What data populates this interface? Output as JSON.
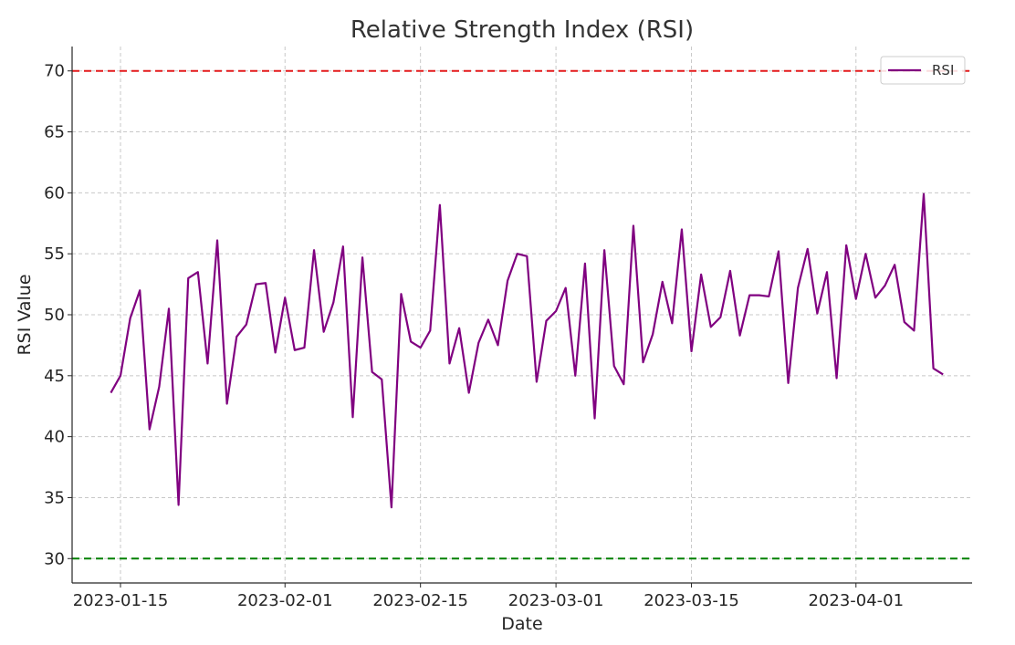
{
  "chart_data": {
    "type": "line",
    "title": "Relative Strength Index (RSI)",
    "xlabel": "Date",
    "ylabel": "RSI Value",
    "ylim": [
      28,
      72
    ],
    "xlim": [
      "2023-01-10",
      "2023-04-13"
    ],
    "x_ticks": [
      "2023-01-15",
      "2023-02-01",
      "2023-02-15",
      "2023-03-01",
      "2023-03-15",
      "2023-04-01"
    ],
    "y_ticks": [
      30,
      35,
      40,
      45,
      50,
      55,
      60,
      65,
      70
    ],
    "grid": true,
    "legend_position": "top-right",
    "thresholds": [
      {
        "value": 70,
        "color": "#e41a1c",
        "style": "dashed"
      },
      {
        "value": 30,
        "color": "#008000",
        "style": "dashed"
      }
    ],
    "series": [
      {
        "name": "RSI",
        "color": "#800080",
        "x_start": "2023-01-14",
        "x_step_days": 1,
        "values": [
          43.6,
          45.0,
          49.7,
          52.0,
          40.6,
          44.1,
          50.5,
          34.4,
          53.0,
          53.5,
          46.0,
          56.1,
          42.7,
          48.2,
          49.2,
          52.5,
          52.6,
          46.9,
          51.4,
          47.1,
          47.3,
          55.3,
          48.6,
          51.0,
          55.6,
          41.6,
          54.7,
          45.3,
          44.7,
          34.2,
          51.7,
          47.8,
          47.3,
          48.7,
          59.0,
          46.0,
          48.9,
          43.6,
          47.7,
          49.6,
          47.5,
          52.8,
          55.0,
          54.8,
          44.5,
          49.5,
          50.3,
          52.2,
          45.0,
          54.2,
          41.5,
          55.3,
          45.8,
          44.3,
          57.3,
          46.1,
          48.4,
          52.7,
          49.3,
          57.0,
          47.0,
          53.3,
          49.0,
          49.8,
          53.6,
          48.3,
          51.6,
          51.6,
          51.5,
          55.2,
          44.4,
          52.2,
          55.4,
          50.1,
          53.5,
          44.8,
          55.7,
          51.3,
          55.0,
          51.4,
          52.4,
          54.1,
          49.4,
          48.7,
          59.9,
          45.6,
          45.1
        ]
      }
    ]
  }
}
